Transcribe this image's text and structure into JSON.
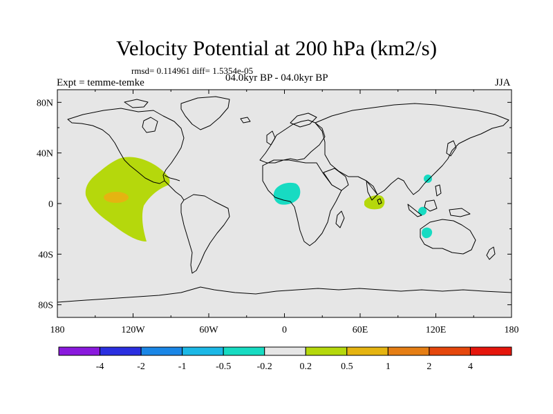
{
  "title": "Velocity Potential at 200 hPa (km2/s)",
  "stats": "rmsd= 0.114961 diff= 1.5354e-05",
  "expt": "Expt = temme-temke",
  "period": "04.0kyr BP - 04.0kyr BP",
  "season": "JJA",
  "axes": {
    "lat_labels": [
      "80N",
      "40N",
      "0",
      "40S",
      "80S"
    ],
    "lon_labels": [
      "180",
      "120W",
      "60W",
      "0",
      "60E",
      "120E",
      "180"
    ]
  },
  "colorbar": {
    "colors": [
      "#8a19dd",
      "#2b2fe0",
      "#1a86e6",
      "#1cb8e6",
      "#17dbc2",
      "#e6e6e6",
      "#b5d80c",
      "#e5b411",
      "#e57e14",
      "#e5470d",
      "#e5160c"
    ],
    "labels": [
      "-4",
      "-2",
      "-1",
      "-0.5",
      "-0.2",
      "0.2",
      "0.5",
      "1",
      "2",
      "4"
    ]
  },
  "map": {
    "background": "#e6e6e6",
    "anomalies": [
      {
        "name": "east-pacific-positive",
        "level": "0.2 to 0.5",
        "color": "#b5d80c"
      },
      {
        "name": "east-pacific-core",
        "level": "0.5 to 1",
        "color": "#e5b411"
      },
      {
        "name": "west-africa-negative",
        "level": "-0.5 to -0.2",
        "color": "#17dbc2"
      },
      {
        "name": "indian-ocean-positive",
        "level": "0.2 to 0.5",
        "color": "#b5d80c"
      },
      {
        "name": "south-china-negative",
        "level": "-0.5 to -0.2",
        "color": "#17dbc2"
      },
      {
        "name": "maritime-continent-negative",
        "level": "-0.5 to -0.2",
        "color": "#17dbc2"
      },
      {
        "name": "australia-negative",
        "level": "-0.5 to -0.2",
        "color": "#17dbc2"
      }
    ]
  }
}
